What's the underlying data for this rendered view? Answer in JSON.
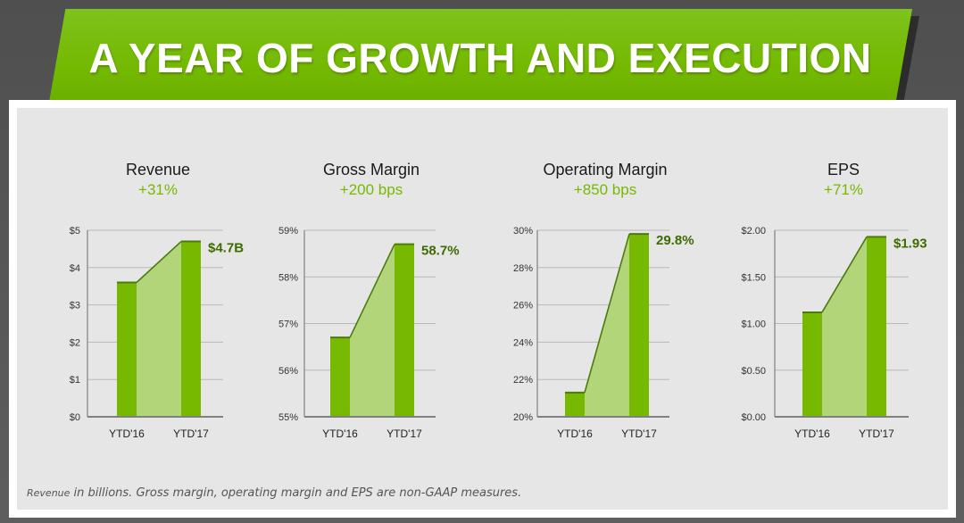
{
  "banner": {
    "title": "A YEAR OF GROWTH AND EXECUTION"
  },
  "footnote": {
    "lead": "Revenue",
    "text": " in billions. Gross margin, operating margin and EPS are non-GAAP measures."
  },
  "colors": {
    "accent": "#76b900",
    "bar": "#76b900",
    "area": "#b2d57a",
    "line": "#4d7a0c",
    "value_label": "#3d6b00",
    "grid": "#b8b8b8",
    "axis": "#808080"
  },
  "chart_data": [
    {
      "type": "bar",
      "title": "Revenue",
      "change": "+31%",
      "categories": [
        "YTD'16",
        "YTD'17"
      ],
      "values": [
        3.6,
        4.7
      ],
      "value_label": "$4.7B",
      "ylim": [
        0,
        5
      ],
      "yticks": [
        0,
        1,
        2,
        3,
        4,
        5
      ],
      "ytick_labels": [
        "$0",
        "$1",
        "$2",
        "$3",
        "$4",
        "$5"
      ],
      "grid": true
    },
    {
      "type": "bar",
      "title": "Gross Margin",
      "change": "+200 bps",
      "categories": [
        "YTD'16",
        "YTD'17"
      ],
      "values": [
        56.7,
        58.7
      ],
      "value_label": "58.7%",
      "ylim": [
        55,
        59
      ],
      "yticks": [
        55,
        56,
        57,
        58,
        59
      ],
      "ytick_labels": [
        "55%",
        "56%",
        "57%",
        "58%",
        "59%"
      ],
      "grid": true
    },
    {
      "type": "bar",
      "title": "Operating Margin",
      "change": "+850 bps",
      "categories": [
        "YTD'16",
        "YTD'17"
      ],
      "values": [
        21.3,
        29.8
      ],
      "value_label": "29.8%",
      "ylim": [
        20,
        30
      ],
      "yticks": [
        20,
        22,
        24,
        26,
        28,
        30
      ],
      "ytick_labels": [
        "20%",
        "22%",
        "24%",
        "26%",
        "28%",
        "30%"
      ],
      "grid": true
    },
    {
      "type": "bar",
      "title": "EPS",
      "change": "+71%",
      "categories": [
        "YTD'16",
        "YTD'17"
      ],
      "values": [
        1.12,
        1.93
      ],
      "value_label": "$1.93",
      "ylim": [
        0,
        2
      ],
      "yticks": [
        0,
        0.5,
        1,
        1.5,
        2
      ],
      "ytick_labels": [
        "$0.00",
        "$0.50",
        "$1.00",
        "$1.50",
        "$2.00"
      ],
      "grid": true
    }
  ]
}
